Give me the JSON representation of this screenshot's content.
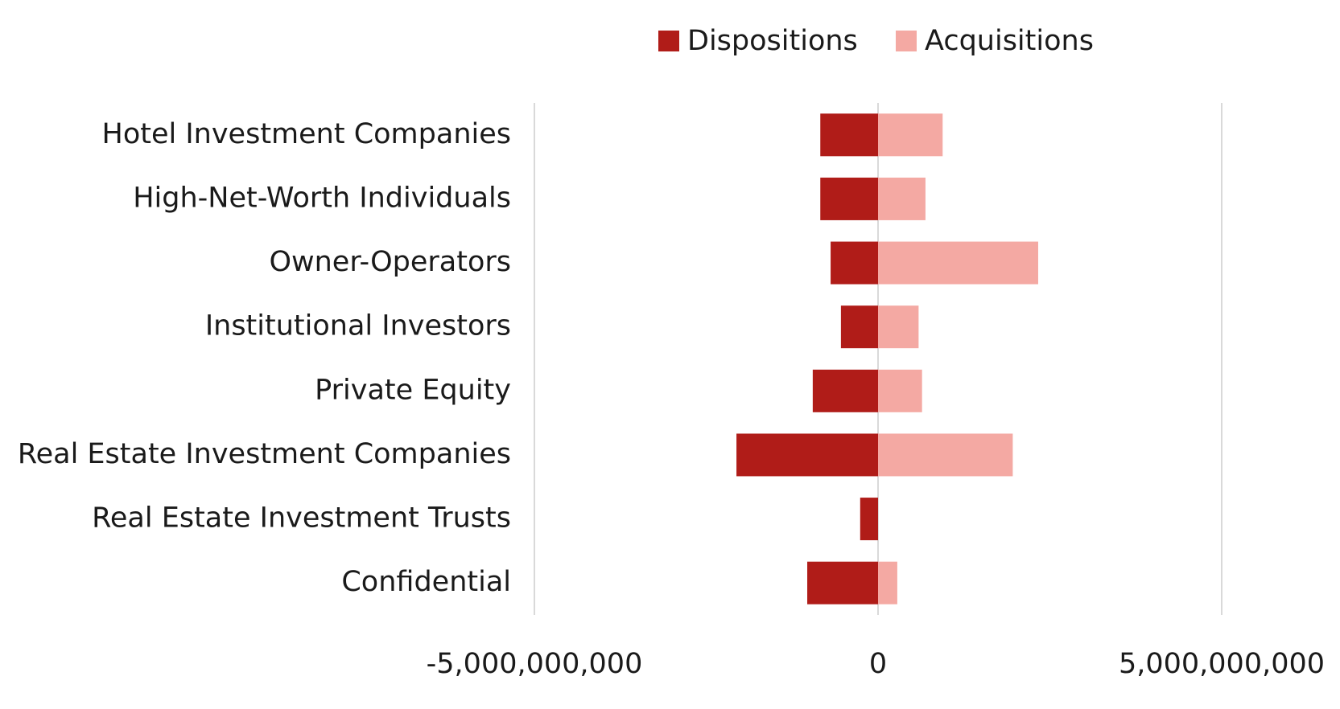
{
  "chart_data": {
    "type": "bar",
    "orientation": "horizontal",
    "categories": [
      "Hotel Investment Companies",
      "High-Net-Worth Individuals",
      "Owner-Operators",
      "Institutional Investors",
      "Private Equity",
      "Real Estate Investment Companies",
      "Real Estate Investment Trusts",
      "Confidential"
    ],
    "series": [
      {
        "name": "Dispositions",
        "color": "#b01c18",
        "values": [
          -840000000,
          -840000000,
          -690000000,
          -540000000,
          -950000000,
          -2060000000,
          -260000000,
          -1030000000
        ]
      },
      {
        "name": "Acquisitions",
        "color": "#f4a9a3",
        "values": [
          940000000,
          690000000,
          2330000000,
          590000000,
          640000000,
          1960000000,
          0,
          280000000
        ]
      }
    ],
    "xlim": [
      -5000000000,
      5000000000
    ],
    "xticks": [
      {
        "value": -5000000000,
        "label": "-5,000,000,000"
      },
      0,
      {
        "value": 5000000000,
        "label": "5,000,000,000"
      }
    ],
    "grid": true,
    "legend": "top"
  }
}
